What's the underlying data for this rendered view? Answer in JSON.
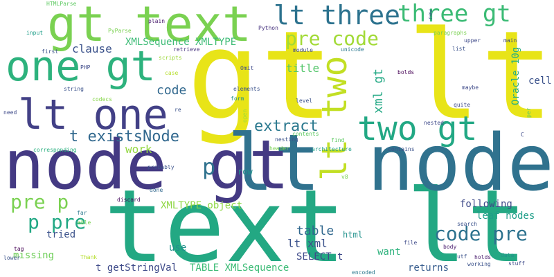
{
  "words": [
    {
      "text": "gt lt",
      "color": "#e8e418",
      "rotate": false
    },
    {
      "text": "text lt",
      "color": "#23a883",
      "rotate": false
    },
    {
      "text": "lt node",
      "color": "#30728e",
      "rotate": false
    },
    {
      "text": "node gt",
      "color": "#443a83",
      "rotate": false
    },
    {
      "text": "gt text",
      "color": "#7ad151",
      "rotate": false
    },
    {
      "text": "one gt",
      "color": "#2db27d",
      "rotate": false
    },
    {
      "text": "lt one",
      "color": "#424086",
      "rotate": false
    },
    {
      "text": "lt two",
      "color": "#c2df23",
      "rotate": true
    },
    {
      "text": "two gt",
      "color": "#22a884",
      "rotate": false
    },
    {
      "text": "lt three",
      "color": "#2c728e",
      "rotate": false
    },
    {
      "text": "three gt",
      "color": "#3bbb75",
      "rotate": false
    },
    {
      "text": "pre code",
      "color": "#a2da37",
      "rotate": false
    },
    {
      "text": "code pre",
      "color": "#2c728e",
      "rotate": false
    },
    {
      "text": "p pre",
      "color": "#22a884",
      "rotate": false
    },
    {
      "text": "pre p",
      "color": "#7ad151",
      "rotate": false
    },
    {
      "text": "p",
      "color": "#30728e",
      "rotate": false
    },
    {
      "text": "t existsNode",
      "color": "#31688e",
      "rotate": false
    },
    {
      "text": "extract",
      "color": "#2a788e",
      "rotate": false
    },
    {
      "text": "xml gt",
      "color": "#22a884",
      "rotate": true
    },
    {
      "text": "Oracle 10g",
      "color": "#29af7f",
      "rotate": true
    },
    {
      "text": "XMLSequence XMLTYPE",
      "color": "#3bbb75",
      "rotate": false
    },
    {
      "text": "clause",
      "color": "#3b528b",
      "rotate": false
    },
    {
      "text": "code",
      "color": "#31688e",
      "rotate": false
    },
    {
      "text": "work",
      "color": "#93d741",
      "rotate": false
    },
    {
      "text": "title",
      "color": "#52c569",
      "rotate": false
    },
    {
      "text": "cell",
      "color": "#3b528b",
      "rotate": false
    },
    {
      "text": "row",
      "color": "#20928c",
      "rotate": false
    },
    {
      "text": "XMLTYPE object",
      "color": "#8fd744",
      "rotate": false
    },
    {
      "text": "following",
      "color": "#3e4a89",
      "rotate": false
    },
    {
      "text": "leaf nodes",
      "color": "#1f9e89",
      "rotate": false
    },
    {
      "text": "table",
      "color": "#31688e",
      "rotate": false
    },
    {
      "text": "tried",
      "color": "#3b528b",
      "rotate": false
    },
    {
      "text": "lt xml",
      "color": "#3b528b",
      "rotate": false
    },
    {
      "text": "html",
      "color": "#21918c",
      "rotate": false
    },
    {
      "text": "missing",
      "color": "#6ece58",
      "rotate": false
    },
    {
      "text": "use",
      "color": "#21918c",
      "rotate": false
    },
    {
      "text": "SELECT t",
      "color": "#3e4a89",
      "rotate": false
    },
    {
      "text": "want",
      "color": "#2db27d",
      "rotate": false
    },
    {
      "text": "returns",
      "color": "#365c8d",
      "rotate": false
    },
    {
      "text": "t getStringVal",
      "color": "#3e4a89",
      "rotate": false
    },
    {
      "text": "TABLE XMLSequence",
      "color": "#3bbb75",
      "rotate": false
    },
    {
      "text": "HTMLParse",
      "color": "#5ec962",
      "rotate": false
    },
    {
      "text": "plain",
      "color": "#481a6c",
      "rotate": false
    },
    {
      "text": "PyParse",
      "color": "#7ad151",
      "rotate": false
    },
    {
      "text": "input",
      "color": "#1f9e89",
      "rotate": false
    },
    {
      "text": "first",
      "color": "#3b528b",
      "rotate": false
    },
    {
      "text": "PHP",
      "color": "#3e4a89",
      "rotate": false
    },
    {
      "text": "string",
      "color": "#3b528b",
      "rotate": false
    },
    {
      "text": "codecs",
      "color": "#86d549",
      "rotate": false
    },
    {
      "text": "need",
      "color": "#3e4a89",
      "rotate": false
    },
    {
      "text": "corresponding",
      "color": "#29af7f",
      "rotate": false
    },
    {
      "text": "tag",
      "color": "#440154",
      "rotate": false
    },
    {
      "text": "lower",
      "color": "#3b528b",
      "rotate": false
    },
    {
      "text": "Thank",
      "color": "#b5de2b",
      "rotate": false
    },
    {
      "text": "able",
      "color": "#7ad151",
      "rotate": false
    },
    {
      "text": "far",
      "color": "#2a788e",
      "rotate": false
    },
    {
      "text": "discard",
      "color": "#460a5d",
      "rotate": false
    },
    {
      "text": "done",
      "color": "#31688e",
      "rotate": false
    },
    {
      "text": "probably",
      "color": "#3b528b",
      "rotate": false
    },
    {
      "text": "scripts",
      "color": "#9dd93b",
      "rotate": false
    },
    {
      "text": "case",
      "color": "#b5de2b",
      "rotate": false
    },
    {
      "text": "retrieve",
      "color": "#46327e",
      "rotate": false
    },
    {
      "text": "Python",
      "color": "#46327e",
      "rotate": false
    },
    {
      "text": "Omit",
      "color": "#3e4a89",
      "rotate": false
    },
    {
      "text": "elements",
      "color": "#3b528b",
      "rotate": false
    },
    {
      "text": "form",
      "color": "#21918c",
      "rotate": false
    },
    {
      "text": "re",
      "color": "#3b528b",
      "rotate": false
    },
    {
      "text": "open",
      "color": "#a5db36",
      "rotate": true
    },
    {
      "text": "module",
      "color": "#3e4a89",
      "rotate": false
    },
    {
      "text": "unicode",
      "color": "#2a788e",
      "rotate": false
    },
    {
      "text": "level",
      "color": "#3b528b",
      "rotate": false
    },
    {
      "text": "contents",
      "color": "#5ec962",
      "rotate": false
    },
    {
      "text": "nesting",
      "color": "#3b528b",
      "rotate": false
    },
    {
      "text": "header",
      "color": "#7ad151",
      "rotate": false
    },
    {
      "text": "architecture",
      "color": "#1f9e89",
      "rotate": false
    },
    {
      "text": "find",
      "color": "#5ec962",
      "rotate": false
    },
    {
      "text": "nested",
      "color": "#3e4a89",
      "rotate": false
    },
    {
      "text": "contains",
      "color": "#3b528b",
      "rotate": false
    },
    {
      "text": "v8",
      "color": "#7ad151",
      "rotate": false
    },
    {
      "text": "search",
      "color": "#3b528b",
      "rotate": false
    },
    {
      "text": "file",
      "color": "#3e4a89",
      "rotate": false
    },
    {
      "text": "body",
      "color": "#481a6c",
      "rotate": false
    },
    {
      "text": "utf",
      "color": "#3b528b",
      "rotate": false
    },
    {
      "text": "holds",
      "color": "#481a6c",
      "rotate": false
    },
    {
      "text": "working",
      "color": "#3b528b",
      "rotate": false
    },
    {
      "text": "data",
      "color": "#21918c",
      "rotate": false
    },
    {
      "text": "stuff",
      "color": "#3e4a89",
      "rotate": false
    },
    {
      "text": "encoded",
      "color": "#2a788e",
      "rotate": false
    },
    {
      "text": "new",
      "color": "#3b528b",
      "rotate": true
    },
    {
      "text": "paragraphs",
      "color": "#7ad151",
      "rotate": false
    },
    {
      "text": "upper",
      "color": "#3e4a89",
      "rotate": false
    },
    {
      "text": "main",
      "color": "#3e4a89",
      "rotate": false
    },
    {
      "text": "list",
      "color": "#3b528b",
      "rotate": false
    },
    {
      "text": "bolds",
      "color": "#440154",
      "rotate": false
    },
    {
      "text": "maybe",
      "color": "#3e4a89",
      "rotate": false
    },
    {
      "text": "quite",
      "color": "#3e4a89",
      "rotate": false
    },
    {
      "text": "per",
      "color": "#5ec962",
      "rotate": true
    },
    {
      "text": "C",
      "color": "#3e4a89",
      "rotate": false
    }
  ]
}
